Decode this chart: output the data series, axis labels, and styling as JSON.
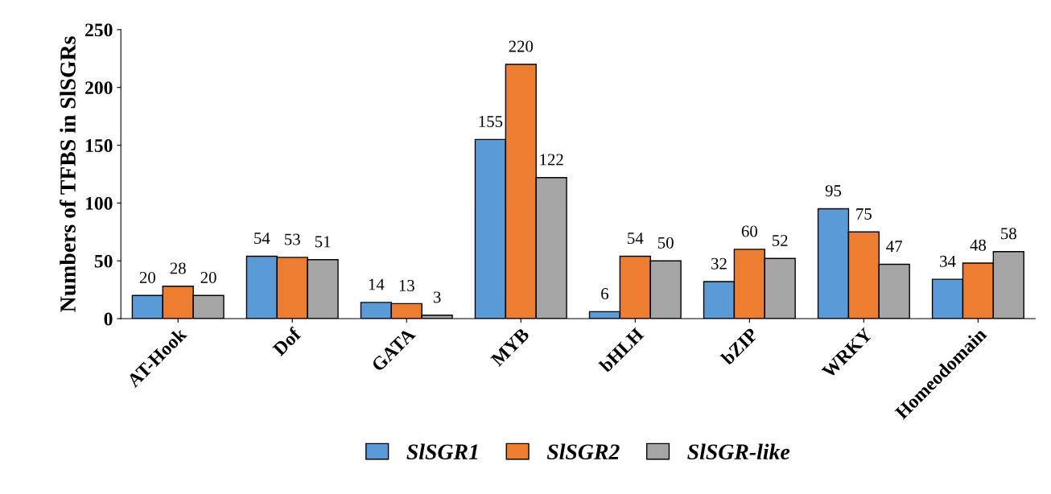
{
  "chart_data": {
    "type": "bar",
    "ylabel": "Numbers of TFBS in SlSGRs",
    "categories": [
      "AT-Hook",
      "Dof",
      "GATA",
      "MYB",
      "bHLH",
      "bZIP",
      "WRKY",
      "Homeodomain"
    ],
    "series": [
      {
        "name": "SlSGR1",
        "color": "#5b9bd5",
        "values": [
          20,
          54,
          14,
          155,
          6,
          32,
          95,
          34
        ]
      },
      {
        "name": "SlSGR2",
        "color": "#ed7d31",
        "values": [
          28,
          53,
          13,
          220,
          54,
          60,
          75,
          48
        ]
      },
      {
        "name": "SlSGR-like",
        "color": "#a5a5a5",
        "values": [
          20,
          51,
          3,
          122,
          50,
          52,
          47,
          58
        ]
      }
    ],
    "ylim": [
      0,
      250
    ],
    "yticks": [
      0,
      50,
      100,
      150,
      200,
      250
    ],
    "grid": false,
    "legend": "bottom",
    "data_labels": true
  }
}
